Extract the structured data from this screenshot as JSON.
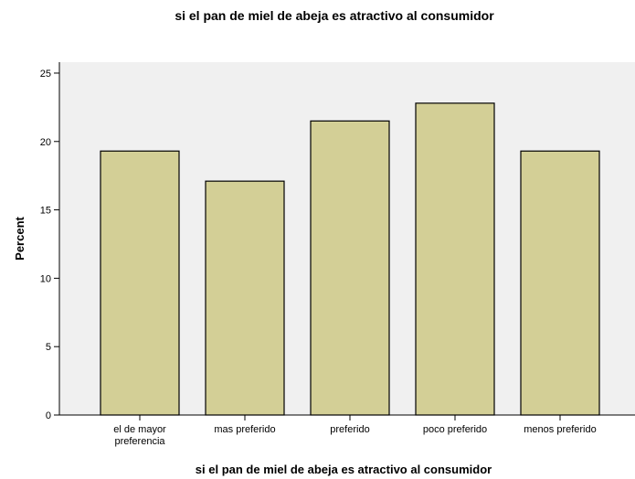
{
  "chart_data": {
    "type": "bar",
    "title": "si el pan de miel de abeja es atractivo al consumidor",
    "xlabel": "si el pan de miel de abeja es atractivo al consumidor",
    "ylabel": "Percent",
    "categories": [
      [
        "el de mayor",
        "preferencia"
      ],
      [
        "mas preferido"
      ],
      [
        "preferido"
      ],
      [
        "poco preferido"
      ],
      [
        "menos preferido"
      ]
    ],
    "values": [
      19.3,
      17.1,
      21.5,
      22.8,
      19.3
    ],
    "ylim": [
      0,
      25.8
    ],
    "yticks": [
      "0",
      "5",
      "10",
      "15",
      "20",
      "25"
    ],
    "grid": false,
    "colors": {
      "bar_fill": "#d3cf96",
      "bar_stroke": "#000000",
      "plot_background": "#f0f0f0"
    }
  }
}
